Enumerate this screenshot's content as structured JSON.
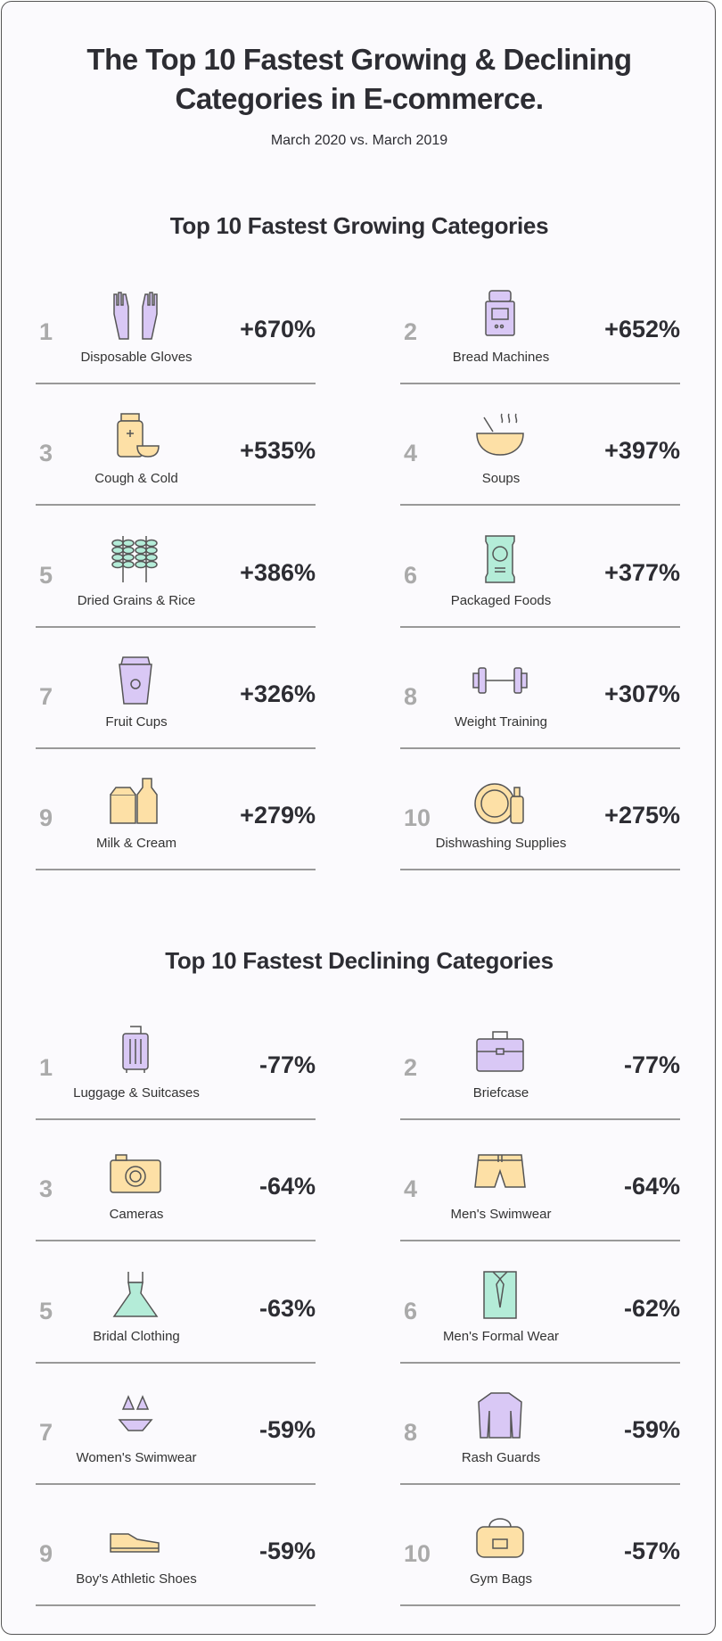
{
  "title_line1": "The Top 10 Fastest Growing & Declining",
  "title_line2": "Categories in E-commerce.",
  "subtitle": "March 2020 vs. March 2019",
  "colors": {
    "purple": "#d9c8f5",
    "yellow": "#fde0a6",
    "mint": "#b4ecd8",
    "outline": "#555555",
    "rank": "#aaaaaa"
  },
  "sections": [
    {
      "heading": "Top 10 Fastest Growing Categories",
      "items": [
        {
          "rank": "1",
          "label": "Disposable Gloves",
          "value": "+670%",
          "icon": "gloves-icon",
          "color": "purple"
        },
        {
          "rank": "2",
          "label": "Bread Machines",
          "value": "+652%",
          "icon": "bread-machine-icon",
          "color": "purple"
        },
        {
          "rank": "3",
          "label": "Cough & Cold",
          "value": "+535%",
          "icon": "medicine-icon",
          "color": "yellow"
        },
        {
          "rank": "4",
          "label": "Soups",
          "value": "+397%",
          "icon": "soup-bowl-icon",
          "color": "yellow"
        },
        {
          "rank": "5",
          "label": "Dried Grains & Rice",
          "value": "+386%",
          "icon": "wheat-icon",
          "color": "mint"
        },
        {
          "rank": "6",
          "label": "Packaged Foods",
          "value": "+377%",
          "icon": "package-icon",
          "color": "mint"
        },
        {
          "rank": "7",
          "label": "Fruit Cups",
          "value": "+326%",
          "icon": "fruit-cup-icon",
          "color": "purple"
        },
        {
          "rank": "8",
          "label": "Weight Training",
          "value": "+307%",
          "icon": "dumbbell-icon",
          "color": "purple"
        },
        {
          "rank": "9",
          "label": "Milk & Cream",
          "value": "+279%",
          "icon": "milk-icon",
          "color": "yellow"
        },
        {
          "rank": "10",
          "label": "Dishwashing Supplies",
          "value": "+275%",
          "icon": "dish-soap-icon",
          "color": "yellow"
        }
      ]
    },
    {
      "heading": "Top 10 Fastest Declining Categories",
      "items": [
        {
          "rank": "1",
          "label": "Luggage & Suitcases",
          "value": "-77%",
          "icon": "suitcase-icon",
          "color": "purple"
        },
        {
          "rank": "2",
          "label": "Briefcase",
          "value": "-77%",
          "icon": "briefcase-icon",
          "color": "purple"
        },
        {
          "rank": "3",
          "label": "Cameras",
          "value": "-64%",
          "icon": "camera-icon",
          "color": "yellow"
        },
        {
          "rank": "4",
          "label": "Men's Swimwear",
          "value": "-64%",
          "icon": "swim-shorts-icon",
          "color": "yellow"
        },
        {
          "rank": "5",
          "label": "Bridal Clothing",
          "value": "-63%",
          "icon": "dress-icon",
          "color": "mint"
        },
        {
          "rank": "6",
          "label": "Men's Formal Wear",
          "value": "-62%",
          "icon": "shirt-tie-icon",
          "color": "mint"
        },
        {
          "rank": "7",
          "label": "Women's Swimwear",
          "value": "-59%",
          "icon": "bikini-icon",
          "color": "purple"
        },
        {
          "rank": "8",
          "label": "Rash Guards",
          "value": "-59%",
          "icon": "rash-guard-icon",
          "color": "purple"
        },
        {
          "rank": "9",
          "label": "Boy's Athletic Shoes",
          "value": "-59%",
          "icon": "shoe-icon",
          "color": "yellow"
        },
        {
          "rank": "10",
          "label": "Gym Bags",
          "value": "-57%",
          "icon": "gym-bag-icon",
          "color": "yellow"
        }
      ]
    }
  ]
}
